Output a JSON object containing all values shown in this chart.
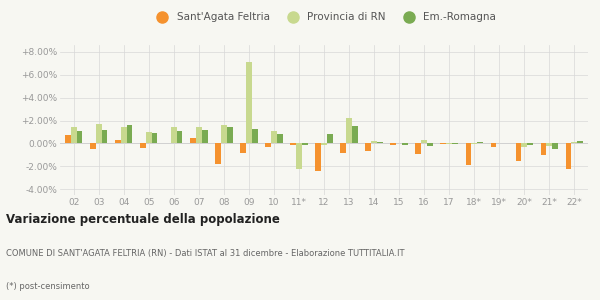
{
  "categories": [
    "02",
    "03",
    "04",
    "05",
    "06",
    "07",
    "08",
    "09",
    "10",
    "11*",
    "12",
    "13",
    "14",
    "15",
    "16",
    "17",
    "18*",
    "19*",
    "20*",
    "21*",
    "22*"
  ],
  "sant_agata": [
    0.7,
    -0.5,
    0.3,
    -0.4,
    0.0,
    0.5,
    -1.8,
    -0.8,
    -0.3,
    -0.1,
    -2.4,
    -0.8,
    -0.7,
    -0.1,
    -0.9,
    -0.05,
    -1.9,
    -0.3,
    -1.5,
    -1.0,
    -2.2
  ],
  "provincia_rn": [
    1.4,
    1.7,
    1.4,
    1.0,
    1.4,
    1.4,
    1.6,
    7.1,
    1.1,
    -2.2,
    -0.1,
    2.2,
    0.2,
    0.05,
    0.3,
    -0.05,
    -0.05,
    0.0,
    -0.3,
    -0.2,
    0.1
  ],
  "em_romagna": [
    1.1,
    1.2,
    1.65,
    0.9,
    1.1,
    1.2,
    1.4,
    1.3,
    0.8,
    -0.1,
    0.8,
    1.5,
    0.1,
    -0.1,
    -0.2,
    -0.05,
    0.1,
    0.0,
    -0.1,
    -0.5,
    0.2
  ],
  "color_sant_agata": "#f5922e",
  "color_provincia_rn": "#c8d98f",
  "color_em_romagna": "#7aab52",
  "title": "Variazione percentuale della popolazione",
  "subtitle": "COMUNE DI SANT'AGATA FELTRIA (RN) - Dati ISTAT al 31 dicembre - Elaborazione TUTTITALIA.IT",
  "footnote": "(*) post-censimento",
  "ylim": [
    -4.5,
    8.6
  ],
  "yticks": [
    -4.0,
    -2.0,
    0.0,
    2.0,
    4.0,
    6.0,
    8.0
  ],
  "background_color": "#f7f7f2",
  "grid_color": "#d8d8d8",
  "tick_color": "#999999",
  "legend_labels": [
    "Sant'Agata Feltria",
    "Provincia di RN",
    "Em.-Romagna"
  ]
}
